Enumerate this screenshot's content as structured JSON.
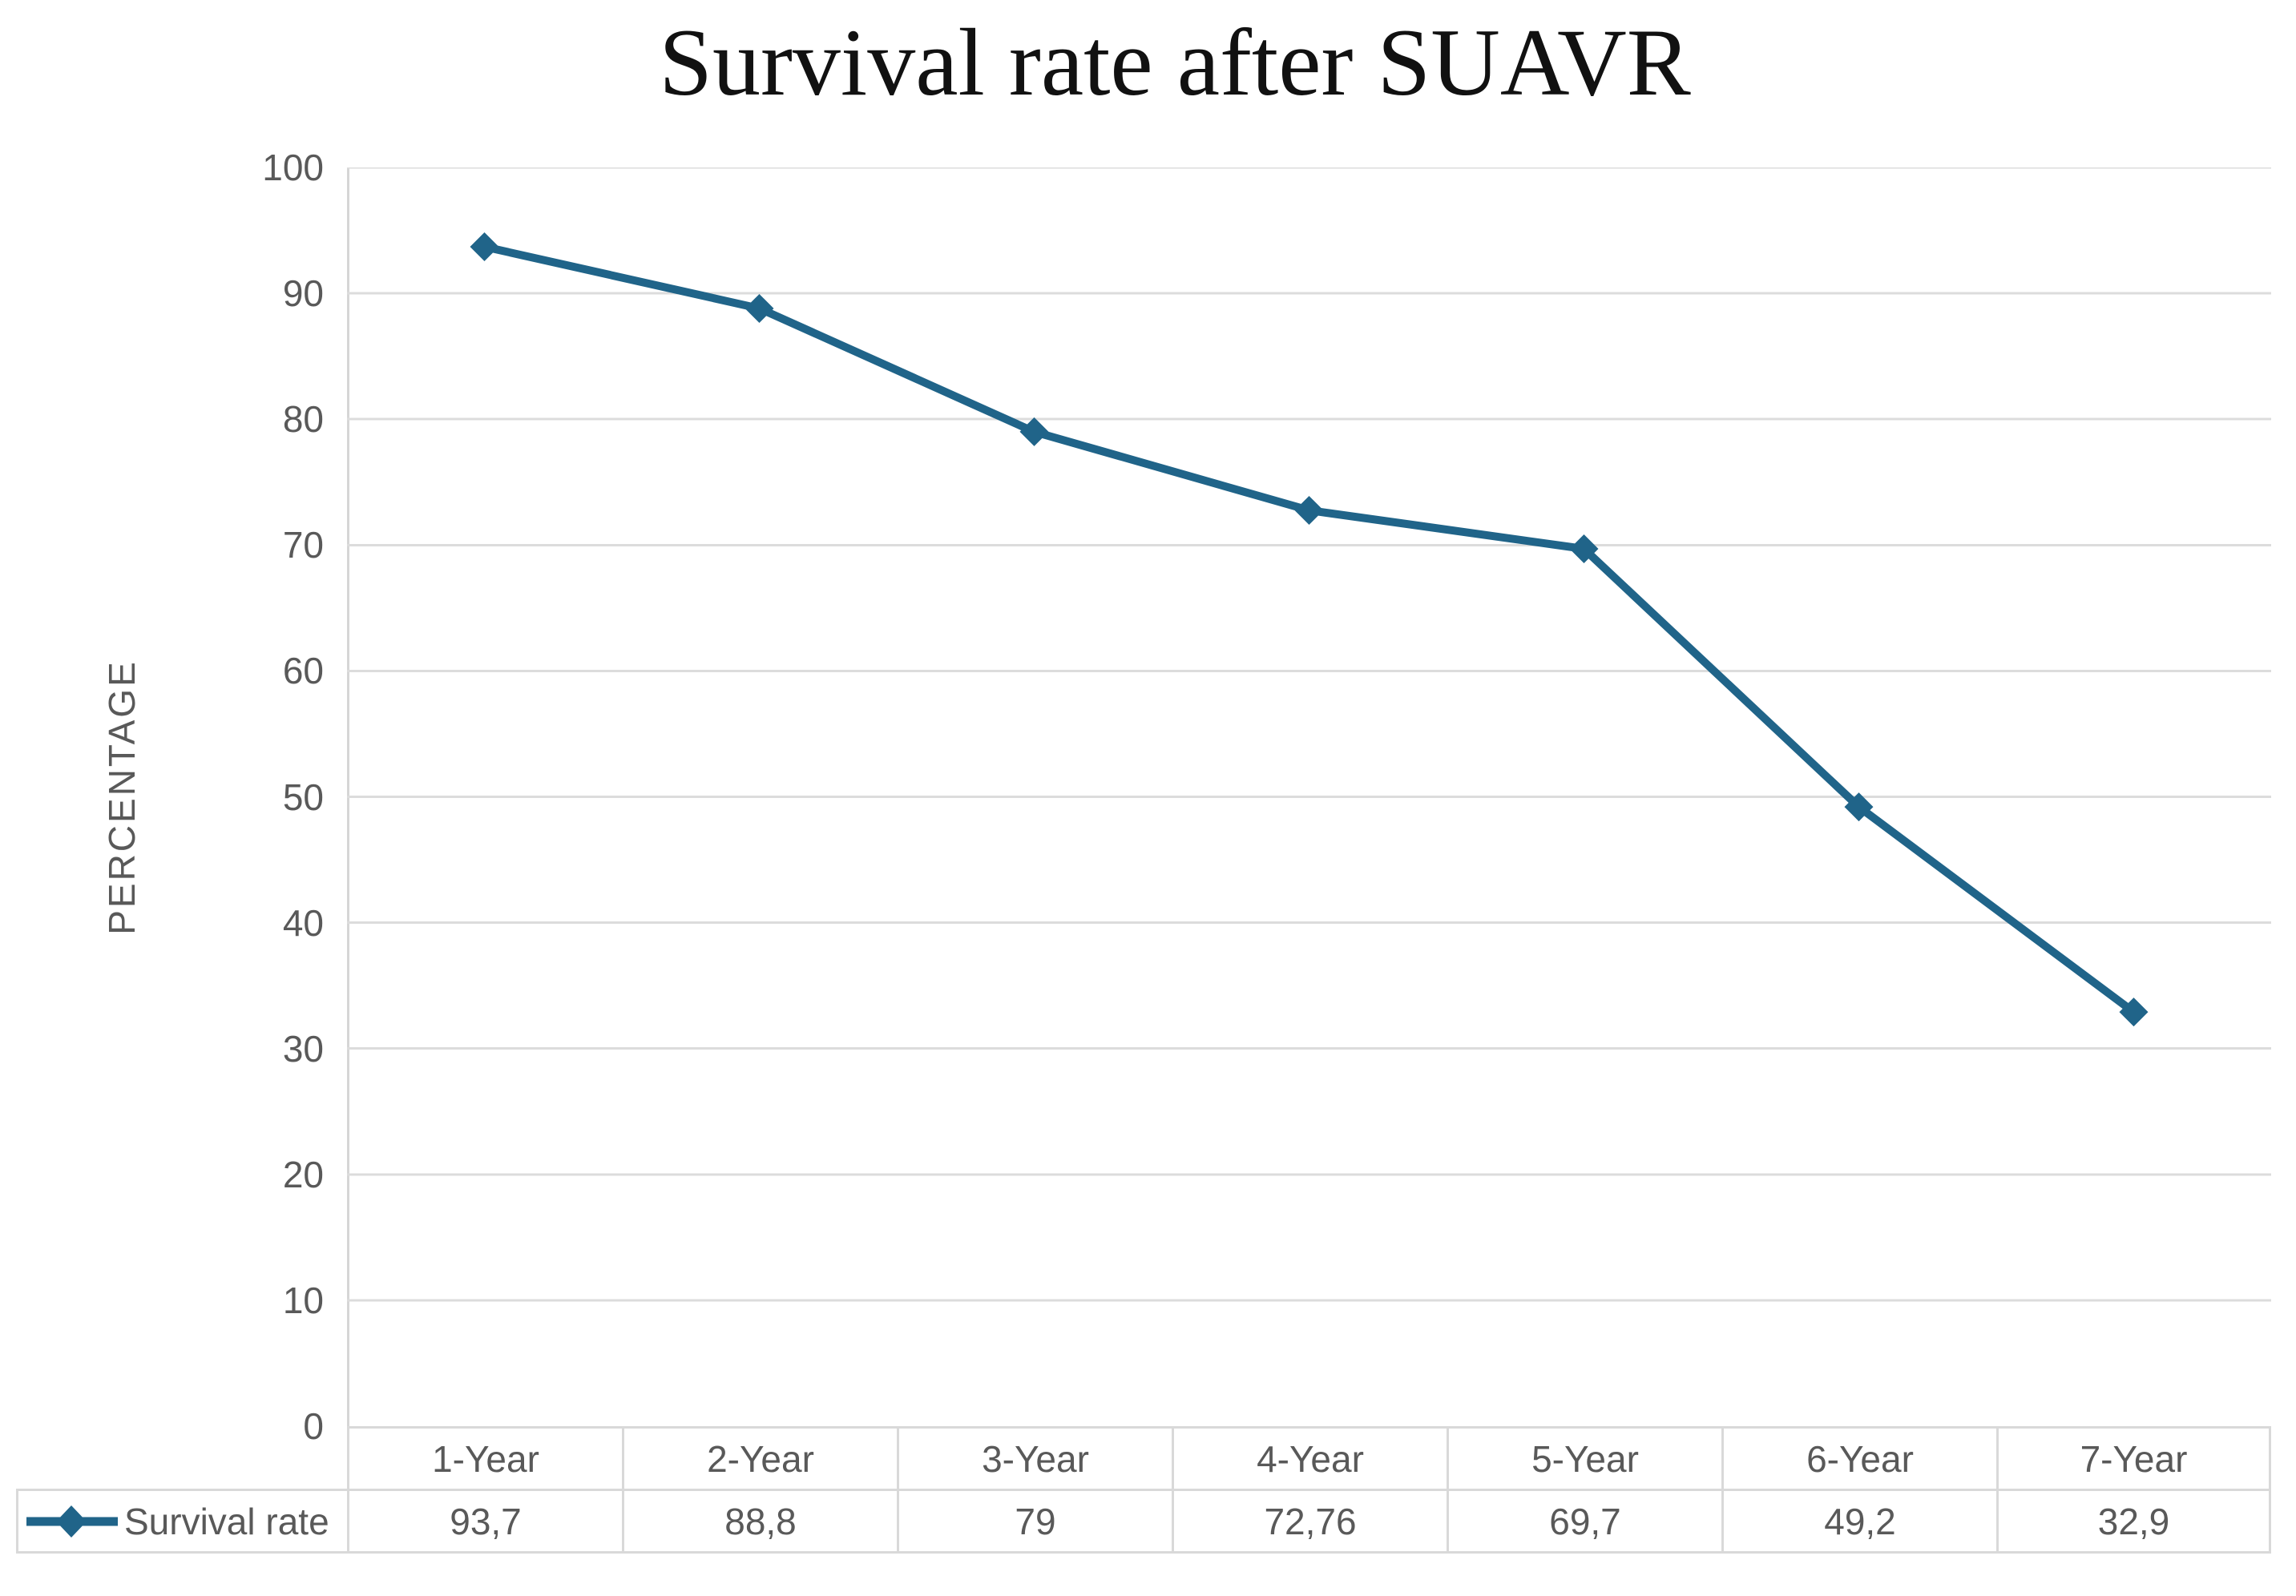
{
  "chart_data": {
    "type": "line",
    "title": "Survival rate after SUAVR",
    "xlabel": "",
    "ylabel": "PERCENTAGE",
    "categories": [
      "1-Year",
      "2-Year",
      "3-Year",
      "4-Year",
      "5-Year",
      "6-Year",
      "7-Year"
    ],
    "series": [
      {
        "name": "Survival rate",
        "values": [
          93.7,
          88.8,
          79,
          72.76,
          69.7,
          49.2,
          32.9
        ],
        "display_values": [
          "93,7",
          "88,8",
          "79",
          "72,76",
          "69,7",
          "49,2",
          "32,9"
        ],
        "marker": "diamond"
      }
    ],
    "yticks": [
      100,
      90,
      80,
      70,
      60,
      50,
      40,
      30,
      20,
      10,
      0
    ],
    "ylim": [
      0,
      100
    ],
    "grid": true,
    "legend_position": "bottom-table"
  },
  "colors": {
    "line": "#206489",
    "grid": "#dcdcdc",
    "axis": "#d6d6d6",
    "text": "#595959",
    "title": "#111111",
    "table_border": "#d9d9d9"
  }
}
